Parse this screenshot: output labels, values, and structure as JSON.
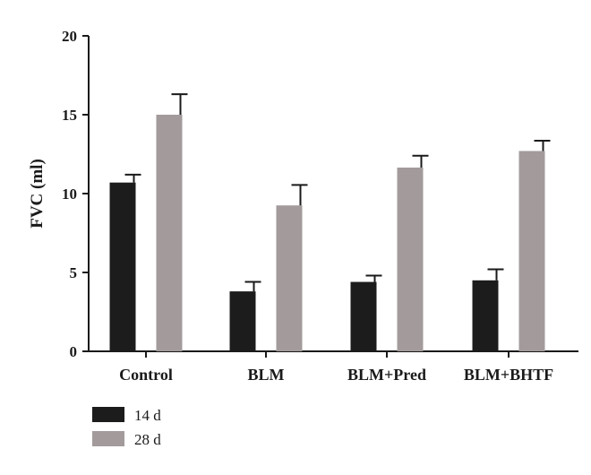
{
  "chart_data": {
    "type": "bar",
    "title": "",
    "xlabel": "",
    "ylabel": "FVC (ml)",
    "ylim": [
      0,
      20
    ],
    "yticks": [
      0,
      5,
      10,
      15,
      20
    ],
    "categories": [
      "Control",
      "BLM",
      "BLM+Pred",
      "BLM+BHTF"
    ],
    "series": [
      {
        "name": "14 d",
        "color": "#1c1c1c",
        "values": [
          10.7,
          3.8,
          4.4,
          4.5
        ],
        "errors": [
          0.5,
          0.6,
          0.4,
          0.7
        ]
      },
      {
        "name": "28 d",
        "color": "#a39b9b",
        "values": [
          15.0,
          9.25,
          11.65,
          12.7
        ],
        "errors": [
          1.3,
          1.3,
          0.75,
          0.65
        ]
      }
    ],
    "grid": false,
    "legend_position": "bottom-left"
  }
}
